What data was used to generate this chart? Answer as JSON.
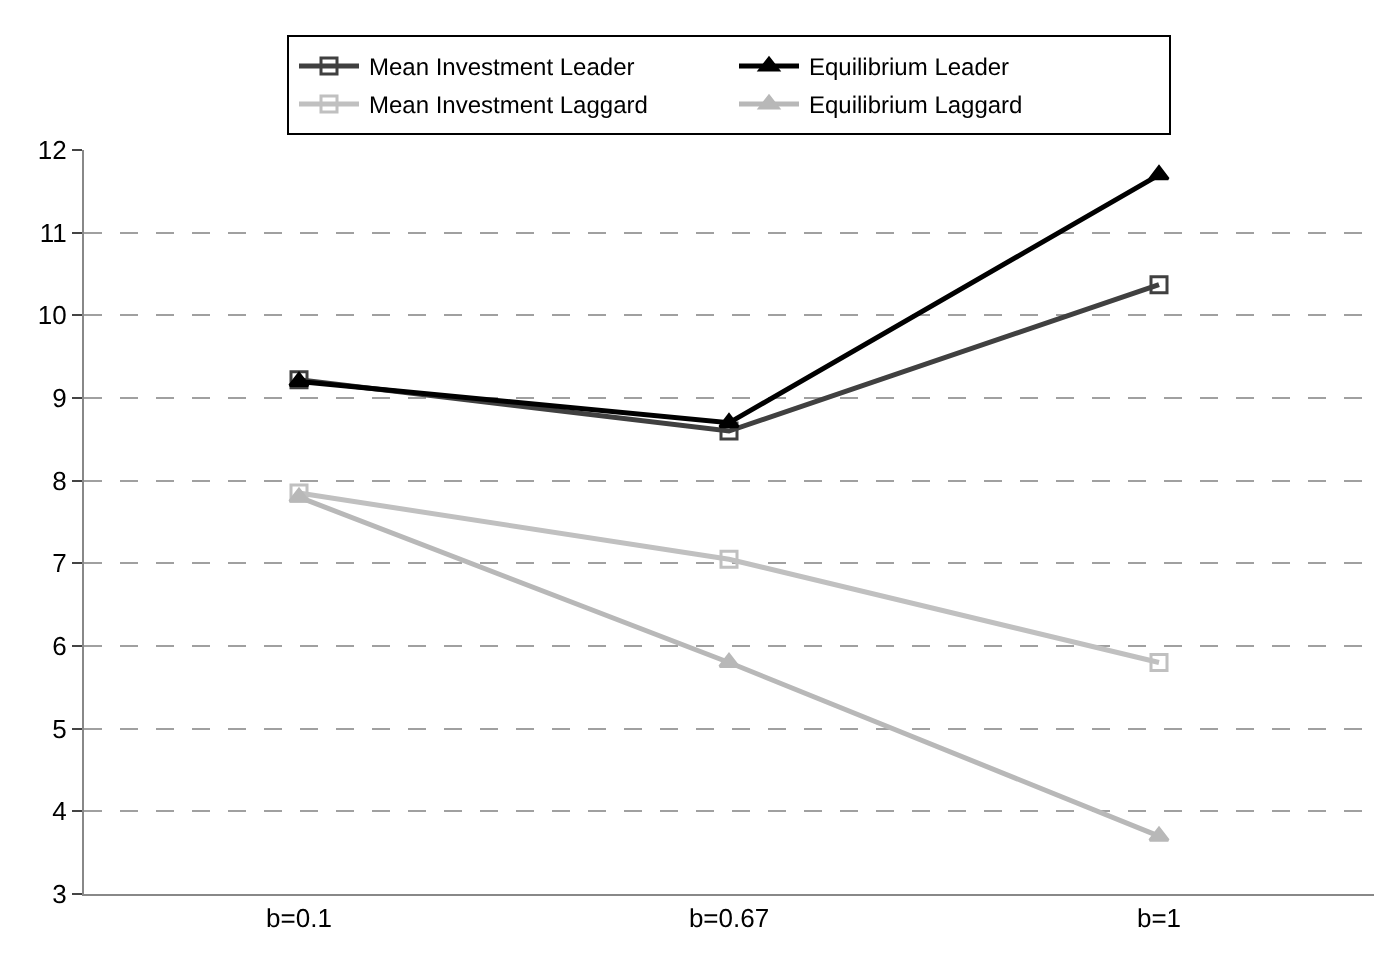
{
  "chart_data": {
    "type": "line",
    "categories": [
      "b=0.1",
      "b=0.67",
      "b=1"
    ],
    "series": [
      {
        "name": "Mean Investment Leader",
        "color": "#404040",
        "marker": "square",
        "values": [
          9.22,
          8.6,
          10.37
        ]
      },
      {
        "name": "Equilibrium Leader",
        "color": "#000000",
        "marker": "triangle",
        "values": [
          9.2,
          8.7,
          11.7
        ]
      },
      {
        "name": "Mean Investment Laggard",
        "color": "#c0c0c0",
        "marker": "square",
        "values": [
          7.85,
          7.05,
          5.8
        ]
      },
      {
        "name": "Equilibrium Laggard",
        "color": "#b8b8b8",
        "marker": "triangle",
        "values": [
          7.8,
          5.8,
          3.7
        ]
      }
    ],
    "ylim": [
      3,
      12
    ],
    "yticks": [
      3,
      4,
      5,
      6,
      7,
      8,
      9,
      10,
      11,
      12
    ],
    "grid": "y",
    "legend": "top",
    "line_style": "solid"
  }
}
